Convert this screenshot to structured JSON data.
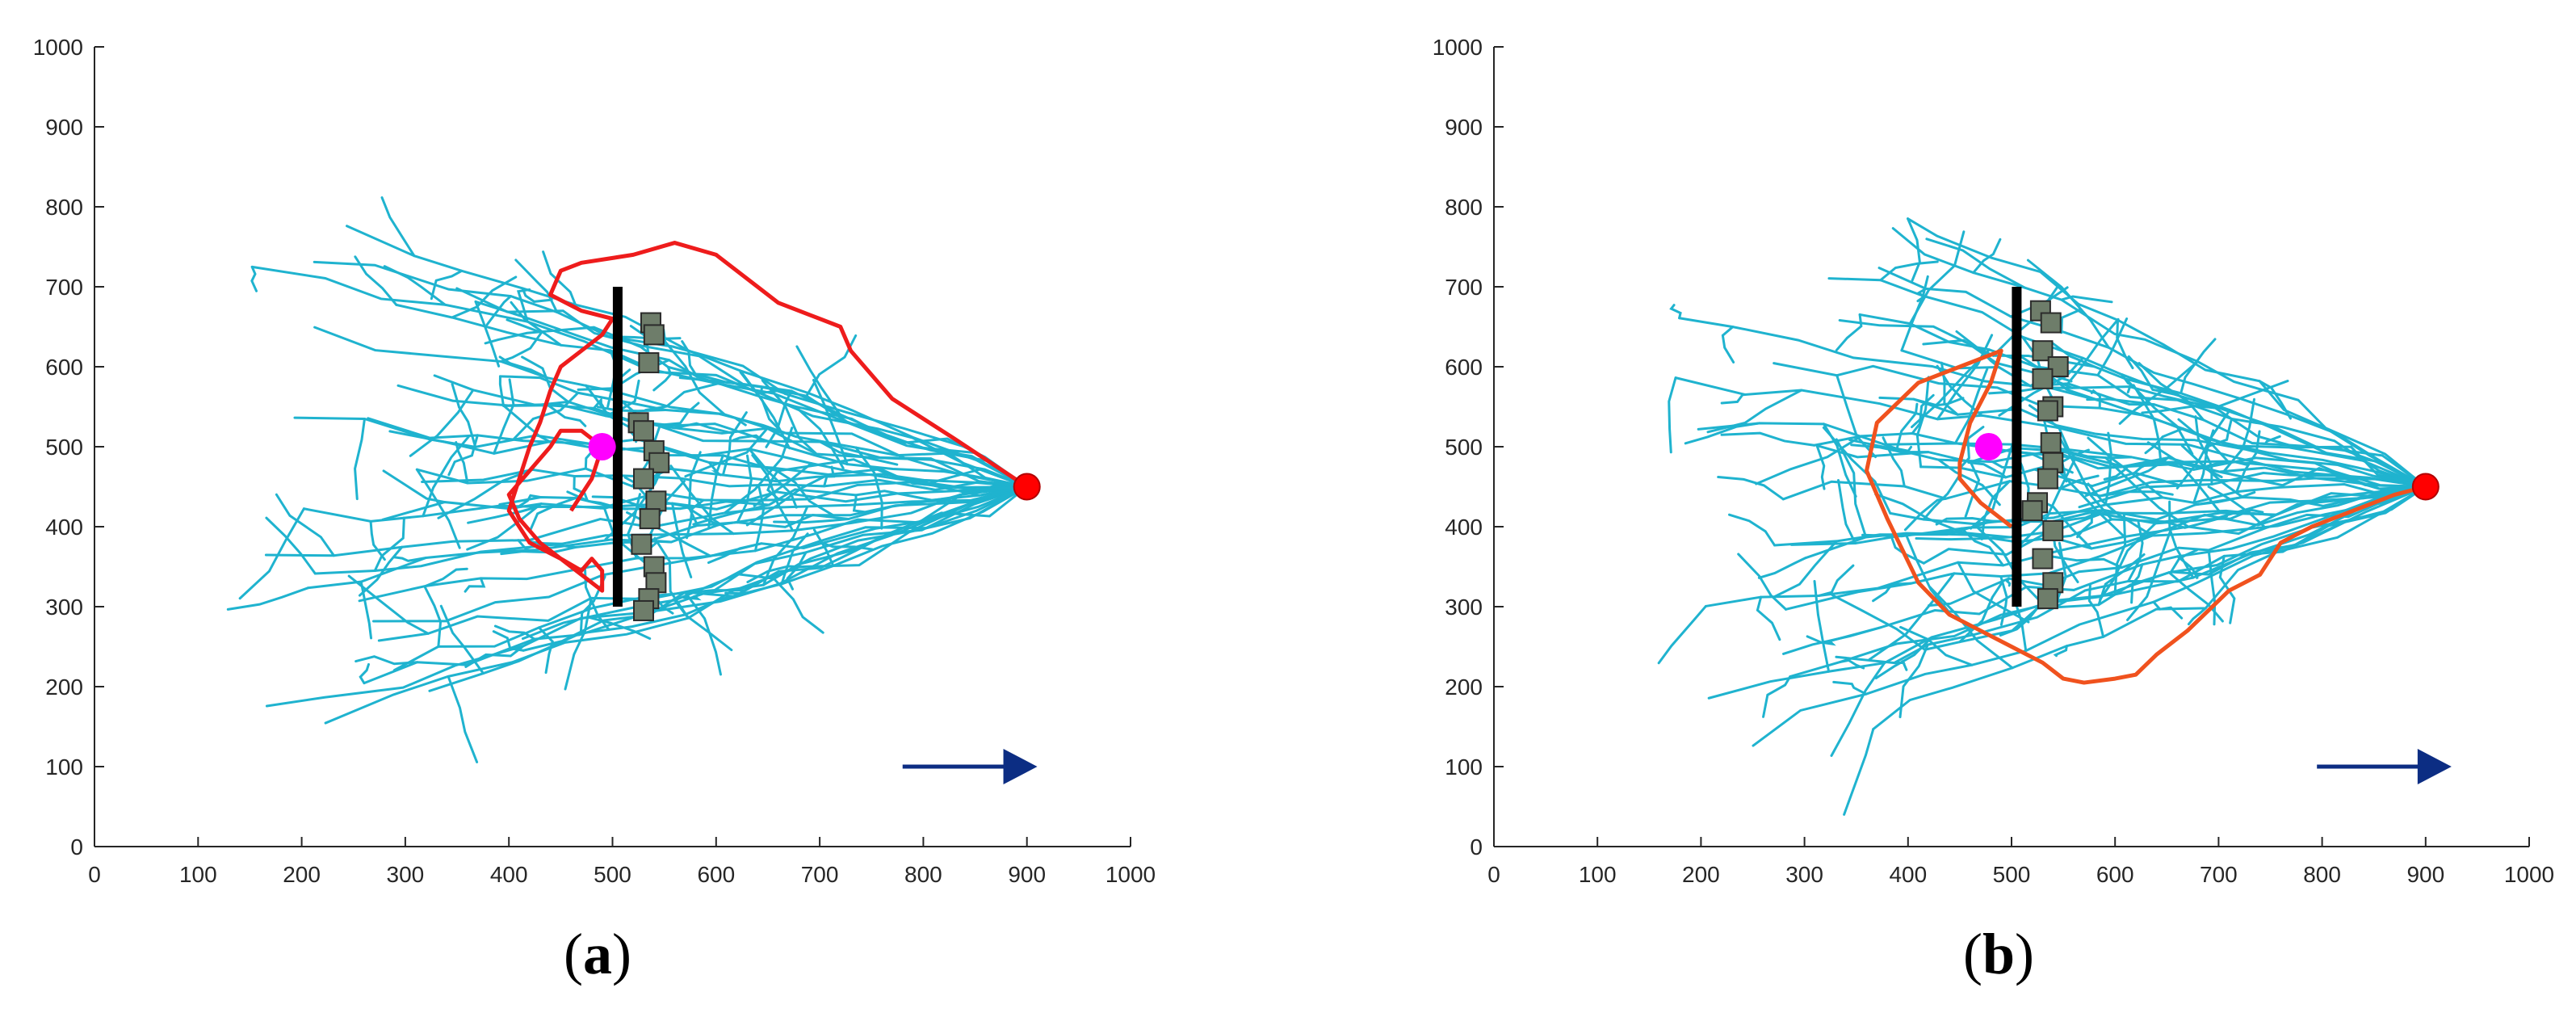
{
  "figure": {
    "panels": [
      {
        "label_open": "(",
        "label_letter": "a",
        "label_close": ")"
      },
      {
        "label_open": "(",
        "label_letter": "b",
        "label_close": ")"
      }
    ]
  },
  "colors": {
    "tree": "#1fb3cf",
    "path_a": "#ee1c1c",
    "path_b": "#f0521e",
    "obstacle_wall": "#000000",
    "obstacle_box": "#6e7d6a",
    "start": "#ff00ff",
    "goal": "#ff0000",
    "flow_arrow": "#0c2d83",
    "axis": "#262626"
  },
  "chart_data": [
    {
      "type": "scatter",
      "panel": "a",
      "title": "",
      "xlabel": "",
      "ylabel": "",
      "xlim": [
        0,
        1000
      ],
      "ylim": [
        0,
        1000
      ],
      "xticks": [
        0,
        100,
        200,
        300,
        400,
        500,
        600,
        700,
        800,
        900,
        1000
      ],
      "yticks": [
        0,
        100,
        200,
        300,
        400,
        500,
        600,
        700,
        800,
        900,
        1000
      ],
      "grid": false,
      "start": [
        490,
        500
      ],
      "goal": [
        900,
        450
      ],
      "wall": {
        "x": 505,
        "y": [
          300,
          700
        ]
      },
      "boxes": [
        [
          537,
          655
        ],
        [
          540,
          640
        ],
        [
          535,
          605
        ],
        [
          525,
          530
        ],
        [
          530,
          520
        ],
        [
          540,
          495
        ],
        [
          545,
          480
        ],
        [
          530,
          460
        ],
        [
          542,
          432
        ],
        [
          536,
          410
        ],
        [
          528,
          378
        ],
        [
          540,
          350
        ],
        [
          542,
          330
        ],
        [
          535,
          310
        ],
        [
          530,
          295
        ]
      ],
      "flow_arrow": {
        "from": [
          780,
          100
        ],
        "to": [
          910,
          100
        ]
      },
      "path": [
        [
          900,
          450
        ],
        [
          830,
          510
        ],
        [
          770,
          560
        ],
        [
          730,
          620
        ],
        [
          720,
          650
        ],
        [
          690,
          665
        ],
        [
          660,
          680
        ],
        [
          640,
          700
        ],
        [
          600,
          740
        ],
        [
          560,
          755
        ],
        [
          520,
          740
        ],
        [
          470,
          730
        ],
        [
          450,
          720
        ],
        [
          440,
          690
        ],
        [
          470,
          670
        ],
        [
          500,
          660
        ],
        [
          490,
          640
        ],
        [
          470,
          620
        ],
        [
          450,
          600
        ],
        [
          440,
          570
        ],
        [
          430,
          530
        ],
        [
          420,
          500
        ],
        [
          410,
          460
        ],
        [
          400,
          420
        ],
        [
          420,
          380
        ],
        [
          450,
          360
        ],
        [
          470,
          345
        ],
        [
          480,
          360
        ],
        [
          490,
          345
        ],
        [
          490,
          320
        ],
        [
          480,
          330
        ],
        [
          460,
          350
        ],
        [
          430,
          380
        ],
        [
          410,
          410
        ],
        [
          400,
          440
        ],
        [
          420,
          470
        ],
        [
          440,
          500
        ],
        [
          450,
          520
        ],
        [
          470,
          520
        ],
        [
          490,
          500
        ],
        [
          480,
          460
        ],
        [
          470,
          440
        ],
        [
          460,
          420
        ]
      ]
    },
    {
      "type": "scatter",
      "panel": "b",
      "title": "",
      "xlabel": "",
      "ylabel": "",
      "xlim": [
        0,
        1000
      ],
      "ylim": [
        0,
        1000
      ],
      "xticks": [
        0,
        100,
        200,
        300,
        400,
        500,
        600,
        700,
        800,
        900,
        1000
      ],
      "yticks": [
        0,
        100,
        200,
        300,
        400,
        500,
        600,
        700,
        800,
        900,
        1000
      ],
      "grid": false,
      "start": [
        478,
        500
      ],
      "goal": [
        900,
        450
      ],
      "wall": {
        "x": 505,
        "y": [
          300,
          700
        ]
      },
      "boxes": [
        [
          528,
          670
        ],
        [
          538,
          655
        ],
        [
          530,
          620
        ],
        [
          545,
          600
        ],
        [
          530,
          585
        ],
        [
          540,
          550
        ],
        [
          535,
          545
        ],
        [
          538,
          505
        ],
        [
          540,
          480
        ],
        [
          535,
          460
        ],
        [
          525,
          430
        ],
        [
          520,
          420
        ],
        [
          540,
          395
        ],
        [
          530,
          360
        ],
        [
          540,
          330
        ],
        [
          535,
          310
        ]
      ],
      "flow_arrow": {
        "from": [
          795,
          100
        ],
        "to": [
          925,
          100
        ]
      },
      "path": [
        [
          900,
          450
        ],
        [
          870,
          440
        ],
        [
          830,
          420
        ],
        [
          790,
          400
        ],
        [
          760,
          380
        ],
        [
          740,
          340
        ],
        [
          710,
          320
        ],
        [
          670,
          270
        ],
        [
          640,
          240
        ],
        [
          620,
          215
        ],
        [
          600,
          210
        ],
        [
          570,
          205
        ],
        [
          550,
          210
        ],
        [
          530,
          230
        ],
        [
          500,
          250
        ],
        [
          470,
          270
        ],
        [
          440,
          290
        ],
        [
          410,
          330
        ],
        [
          380,
          410
        ],
        [
          360,
          470
        ],
        [
          370,
          530
        ],
        [
          410,
          580
        ],
        [
          450,
          600
        ],
        [
          470,
          610
        ],
        [
          490,
          620
        ],
        [
          480,
          580
        ],
        [
          460,
          530
        ],
        [
          450,
          480
        ],
        [
          450,
          460
        ],
        [
          470,
          430
        ],
        [
          490,
          410
        ],
        [
          500,
          400
        ]
      ]
    }
  ]
}
